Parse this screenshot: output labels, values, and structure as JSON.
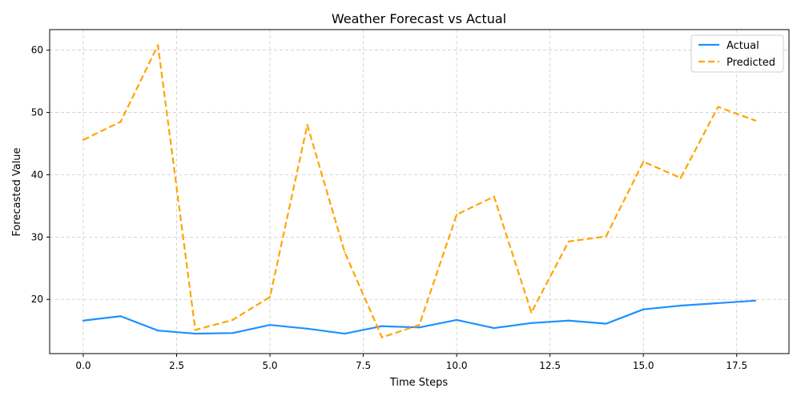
{
  "chart_data": {
    "type": "line",
    "title": "Weather Forecast vs Actual",
    "xlabel": "Time Steps",
    "ylabel": "Forecasted Value",
    "x": [
      0,
      1,
      2,
      3,
      4,
      5,
      6,
      7,
      8,
      9,
      10,
      11,
      12,
      13,
      14,
      15,
      16,
      17,
      18
    ],
    "xlim": [
      -0.9,
      18.9
    ],
    "ylim": [
      11.3,
      63.3
    ],
    "xticks": [
      0.0,
      2.5,
      5.0,
      7.5,
      10.0,
      12.5,
      15.0,
      17.5
    ],
    "xtick_labels": [
      "0.0",
      "2.5",
      "5.0",
      "7.5",
      "10.0",
      "12.5",
      "15.0",
      "17.5"
    ],
    "yticks": [
      20,
      30,
      40,
      50,
      60
    ],
    "ytick_labels": [
      "20",
      "30",
      "40",
      "50",
      "60"
    ],
    "grid": true,
    "legend_position": "top-right",
    "series": [
      {
        "name": "Actual",
        "color": "#1e90ff",
        "style": "solid",
        "values": [
          16.6,
          17.3,
          15.0,
          14.5,
          14.6,
          15.9,
          15.3,
          14.5,
          15.7,
          15.5,
          16.7,
          15.4,
          16.2,
          16.6,
          16.1,
          18.4,
          19.0,
          19.4,
          19.8
        ]
      },
      {
        "name": "Predicted",
        "color": "#ffa500",
        "style": "dashed",
        "values": [
          45.6,
          48.5,
          60.8,
          15.1,
          16.7,
          20.4,
          48.0,
          27.6,
          13.9,
          15.9,
          33.6,
          36.5,
          17.9,
          29.3,
          30.1,
          42.1,
          39.5,
          50.9,
          48.7
        ]
      }
    ]
  }
}
